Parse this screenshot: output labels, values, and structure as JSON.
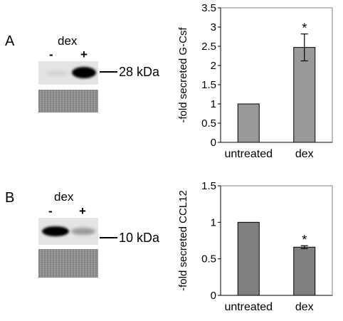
{
  "panels": [
    {
      "letter": "A",
      "blot": {
        "treatment_label": "dex",
        "lane_labels": [
          "-",
          "+"
        ],
        "marker_label": "28 kDa",
        "band_intensity": [
          0.15,
          1.0
        ]
      }
    },
    {
      "letter": "B",
      "blot": {
        "treatment_label": "dex",
        "lane_labels": [
          "-",
          "+"
        ],
        "marker_label": "10 kDa",
        "band_intensity": [
          1.0,
          0.45
        ]
      }
    }
  ],
  "chart_data": [
    {
      "type": "bar",
      "categories": [
        "untreated",
        "dex"
      ],
      "values": [
        1.0,
        2.47
      ],
      "errors": [
        0,
        0.35
      ],
      "annotations": [
        "",
        "*"
      ],
      "title": "",
      "xlabel": "",
      "ylabel": "-fold secreted G-Csf",
      "ylim": [
        0,
        3.5
      ],
      "yticks": [
        0,
        0.5,
        1,
        1.5,
        2,
        2.5,
        3,
        3.5
      ],
      "ytick_labels": [
        "0",
        "0.5",
        "1",
        "1.5",
        "2",
        "2.5",
        "3",
        "3.5"
      ],
      "grid": false,
      "bar_color": "#999999"
    },
    {
      "type": "bar",
      "categories": [
        "untreated",
        "dex"
      ],
      "values": [
        1.0,
        0.66
      ],
      "errors": [
        0,
        0.02
      ],
      "annotations": [
        "",
        "*"
      ],
      "title": "",
      "xlabel": "",
      "ylabel": "-fold secreted CCL12",
      "ylim": [
        0,
        1.5
      ],
      "yticks": [
        0,
        0.5,
        1,
        1.5
      ],
      "ytick_labels": [
        "0",
        "0.5",
        "1",
        "1.5"
      ],
      "grid": false,
      "bar_color": "#808080"
    }
  ]
}
